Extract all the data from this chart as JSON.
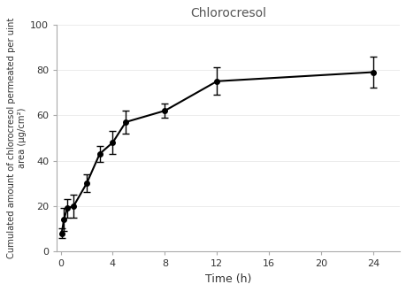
{
  "title": "Chlorocresol",
  "xlabel": "Time (h)",
  "ylabel": "Cumulated amount of chlorocresol permeated per uint\narea (μg/cm²)",
  "x": [
    0.083,
    0.25,
    0.5,
    1,
    2,
    3,
    4,
    5,
    8,
    12,
    24
  ],
  "y": [
    8,
    14,
    19,
    20,
    30,
    43,
    48,
    57,
    62,
    75,
    79
  ],
  "yerr": [
    2,
    5,
    4,
    5,
    4,
    3.5,
    5,
    5,
    3,
    6,
    7
  ],
  "xlim": [
    -0.3,
    26
  ],
  "ylim": [
    0,
    100
  ],
  "xticks": [
    0,
    4,
    8,
    12,
    16,
    20,
    24
  ],
  "yticks": [
    0,
    20,
    40,
    60,
    80,
    100
  ],
  "line_color": "#000000",
  "marker": "o",
  "markersize": 4,
  "linewidth": 1.5,
  "capsize": 3,
  "elinewidth": 1,
  "background_color": "#ffffff",
  "title_color": "#555555",
  "spine_color": "#aaaaaa"
}
